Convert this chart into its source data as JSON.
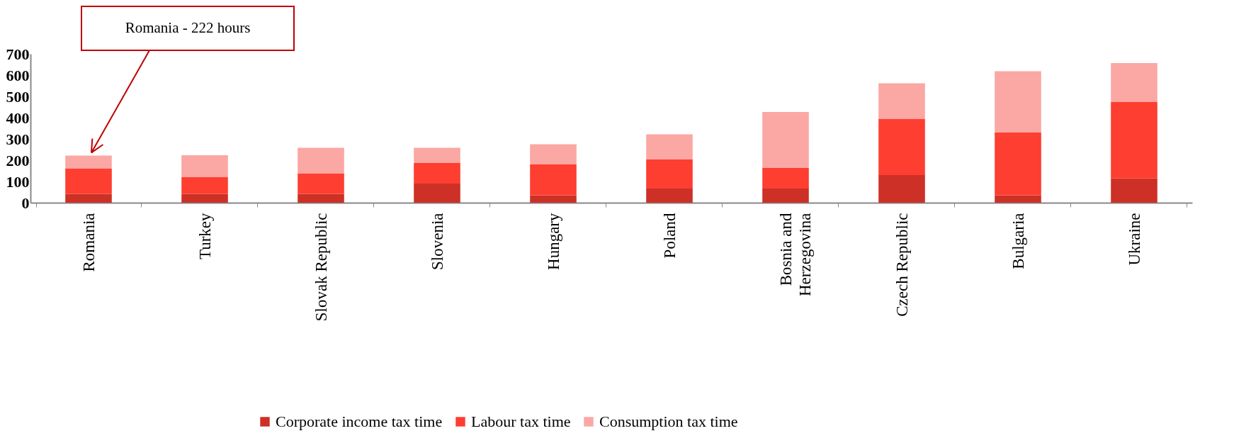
{
  "chart_data": {
    "type": "bar",
    "stacked": true,
    "categories": [
      "Romania",
      "Turkey",
      "Slovak Republic",
      "Slovenia",
      "Hungary",
      "Poland",
      "Bosnia and Herzegovina",
      "Czech Republic",
      "Bulgaria",
      "Ukraine"
    ],
    "series": [
      {
        "name": "Corporate income tax time",
        "color": "#cd3026",
        "values": [
          42,
          42,
          42,
          90,
          35,
          67,
          67,
          130,
          35,
          114
        ]
      },
      {
        "name": "Labour tax time",
        "color": "#fd3e30",
        "values": [
          120,
          80,
          96,
          98,
          145,
          136,
          96,
          265,
          295,
          361
        ]
      },
      {
        "name": "Consumption tax time",
        "color": "#fba7a4",
        "values": [
          60,
          101,
          120,
          70,
          95,
          119,
          264,
          167,
          288,
          182
        ]
      }
    ],
    "ylim": [
      0,
      700
    ],
    "yticks": [
      0,
      100,
      200,
      300,
      400,
      500,
      600,
      700
    ],
    "grid": false,
    "legend": "bottom",
    "annotations": [
      {
        "text": "Romania - 222 hours",
        "x": "Romania",
        "y": 222
      }
    ]
  }
}
